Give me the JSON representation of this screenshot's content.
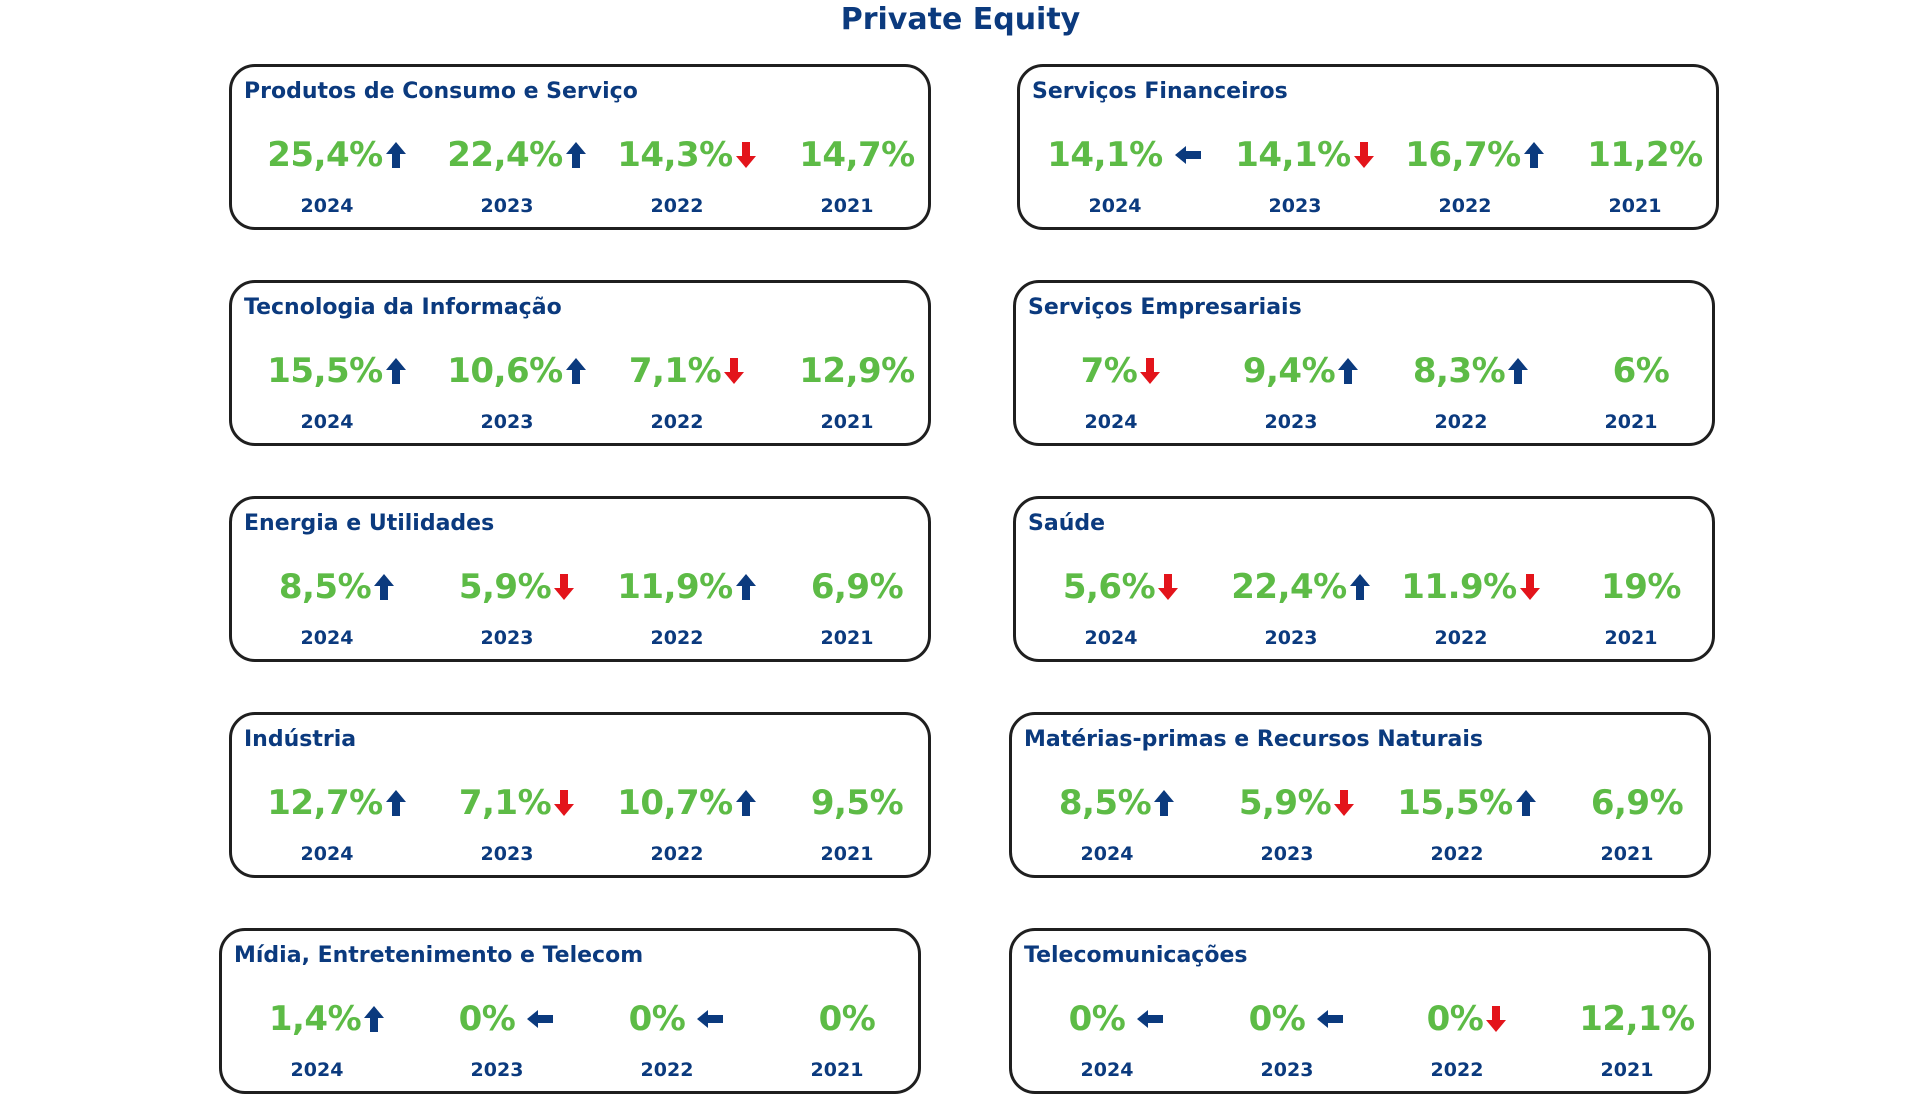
{
  "title": "Private Equity",
  "colors": {
    "title_blue": "#0b3a7e",
    "value_green": "#5dbb46",
    "arrow_up": "#0b3a7e",
    "arrow_side": "#0b3a7e",
    "arrow_down": "#e3141b"
  },
  "sectors": [
    {
      "name": "Produtos de Consumo e Serviço",
      "metrics": [
        {
          "value": "25,4%",
          "year": "2024",
          "trend": "up"
        },
        {
          "value": "22,4%",
          "year": "2023",
          "trend": "up"
        },
        {
          "value": "14,3%",
          "year": "2022",
          "trend": "down"
        },
        {
          "value": "14,7%",
          "year": "2021",
          "trend": "none"
        }
      ]
    },
    {
      "name": "Serviços Financeiros",
      "metrics": [
        {
          "value": "14,1%",
          "year": "2024",
          "trend": "left"
        },
        {
          "value": "14,1%",
          "year": "2023",
          "trend": "down"
        },
        {
          "value": "16,7%",
          "year": "2022",
          "trend": "up"
        },
        {
          "value": "11,2%",
          "year": "2021",
          "trend": "none"
        }
      ]
    },
    {
      "name": "Tecnologia da Informação",
      "metrics": [
        {
          "value": "15,5%",
          "year": "2024",
          "trend": "up"
        },
        {
          "value": "10,6%",
          "year": "2023",
          "trend": "up"
        },
        {
          "value": "7,1%",
          "year": "2022",
          "trend": "down"
        },
        {
          "value": "12,9%",
          "year": "2021",
          "trend": "none"
        }
      ]
    },
    {
      "name": "Serviços Empresariais",
      "metrics": [
        {
          "value": "7%",
          "year": "2024",
          "trend": "down"
        },
        {
          "value": "9,4%",
          "year": "2023",
          "trend": "up"
        },
        {
          "value": "8,3%",
          "year": "2022",
          "trend": "up"
        },
        {
          "value": "6%",
          "year": "2021",
          "trend": "none"
        }
      ]
    },
    {
      "name": "Energia e Utilidades",
      "metrics": [
        {
          "value": "8,5%",
          "year": "2024",
          "trend": "up"
        },
        {
          "value": "5,9%",
          "year": "2023",
          "trend": "down"
        },
        {
          "value": "11,9%",
          "year": "2022",
          "trend": "up"
        },
        {
          "value": "6,9%",
          "year": "2021",
          "trend": "none"
        }
      ]
    },
    {
      "name": "Saúde",
      "metrics": [
        {
          "value": "5,6%",
          "year": "2024",
          "trend": "down"
        },
        {
          "value": "22,4%",
          "year": "2023",
          "trend": "up"
        },
        {
          "value": "11.9%",
          "year": "2022",
          "trend": "down"
        },
        {
          "value": "19%",
          "year": "2021",
          "trend": "none"
        }
      ]
    },
    {
      "name": "Indústria",
      "metrics": [
        {
          "value": "12,7%",
          "year": "2024",
          "trend": "up"
        },
        {
          "value": "7,1%",
          "year": "2023",
          "trend": "down"
        },
        {
          "value": "10,7%",
          "year": "2022",
          "trend": "up"
        },
        {
          "value": "9,5%",
          "year": "2021",
          "trend": "none"
        }
      ]
    },
    {
      "name": "Matérias-primas e Recursos Naturais",
      "metrics": [
        {
          "value": "8,5%",
          "year": "2024",
          "trend": "up"
        },
        {
          "value": "5,9%",
          "year": "2023",
          "trend": "down"
        },
        {
          "value": "15,5%",
          "year": "2022",
          "trend": "up"
        },
        {
          "value": "6,9%",
          "year": "2021",
          "trend": "none"
        }
      ]
    },
    {
      "name": "Mídia, Entretenimento e Telecom",
      "metrics": [
        {
          "value": "1,4%",
          "year": "2024",
          "trend": "up"
        },
        {
          "value": "0%",
          "year": "2023",
          "trend": "left"
        },
        {
          "value": "0%",
          "year": "2022",
          "trend": "left"
        },
        {
          "value": "0%",
          "year": "2021",
          "trend": "none"
        }
      ]
    },
    {
      "name": "Telecomunicações",
      "metrics": [
        {
          "value": "0%",
          "year": "2024",
          "trend": "left"
        },
        {
          "value": "0%",
          "year": "2023",
          "trend": "left"
        },
        {
          "value": "0%",
          "year": "2022",
          "trend": "down"
        },
        {
          "value": "12,1%",
          "year": "2021",
          "trend": "none"
        }
      ]
    }
  ]
}
